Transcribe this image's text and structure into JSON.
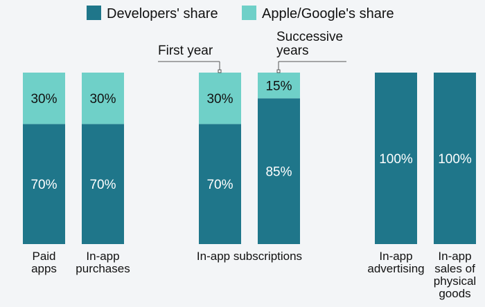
{
  "colors": {
    "developers": "#1f768a",
    "platform": "#6fd0c8",
    "background": "#f3f5f7",
    "text": "#111111",
    "bar_label": "#ffffff",
    "bar_label_light": "#111111",
    "callout": "#555555"
  },
  "chart_data": {
    "type": "bar",
    "stacked": true,
    "title": "",
    "xlabel": "",
    "ylabel": "",
    "ylim": [
      0,
      100
    ],
    "grid": false,
    "legend_position": "top",
    "legend": [
      "Developers' share",
      "Apple/Google's share"
    ],
    "categories": [
      {
        "label_lines": [
          "Paid",
          "apps"
        ],
        "group": "Paid apps"
      },
      {
        "label_lines": [
          "In-app",
          "purchases"
        ],
        "group": "In-app purchases"
      },
      {
        "label_lines": [],
        "group": "In-app subscriptions",
        "annotation": "First year"
      },
      {
        "label_lines": [],
        "group": "In-app subscriptions",
        "annotation": "Successive years"
      },
      {
        "label_lines": [
          "In-app",
          "advertising"
        ],
        "group": "In-app advertising"
      },
      {
        "label_lines": [
          "In-app",
          "sales of",
          "physical",
          "goods"
        ],
        "group": "In-app sales of physical goods"
      }
    ],
    "group_labels": [
      {
        "text": "In-app subscriptions",
        "spans": [
          2,
          3
        ]
      }
    ],
    "annotations": [
      {
        "bar": 2,
        "lines": [
          "First year"
        ],
        "side": "left"
      },
      {
        "bar": 3,
        "lines": [
          "Successive",
          "years"
        ],
        "side": "right"
      }
    ],
    "series": [
      {
        "name": "Developers' share",
        "values": [
          70,
          70,
          70,
          85,
          100,
          100
        ],
        "labels": [
          "70%",
          "70%",
          "70%",
          "85%",
          "100%",
          "100%"
        ]
      },
      {
        "name": "Apple/Google's share",
        "values": [
          30,
          30,
          30,
          15,
          0,
          0
        ],
        "labels": [
          "30%",
          "30%",
          "30%",
          "15%",
          "",
          ""
        ]
      }
    ]
  }
}
